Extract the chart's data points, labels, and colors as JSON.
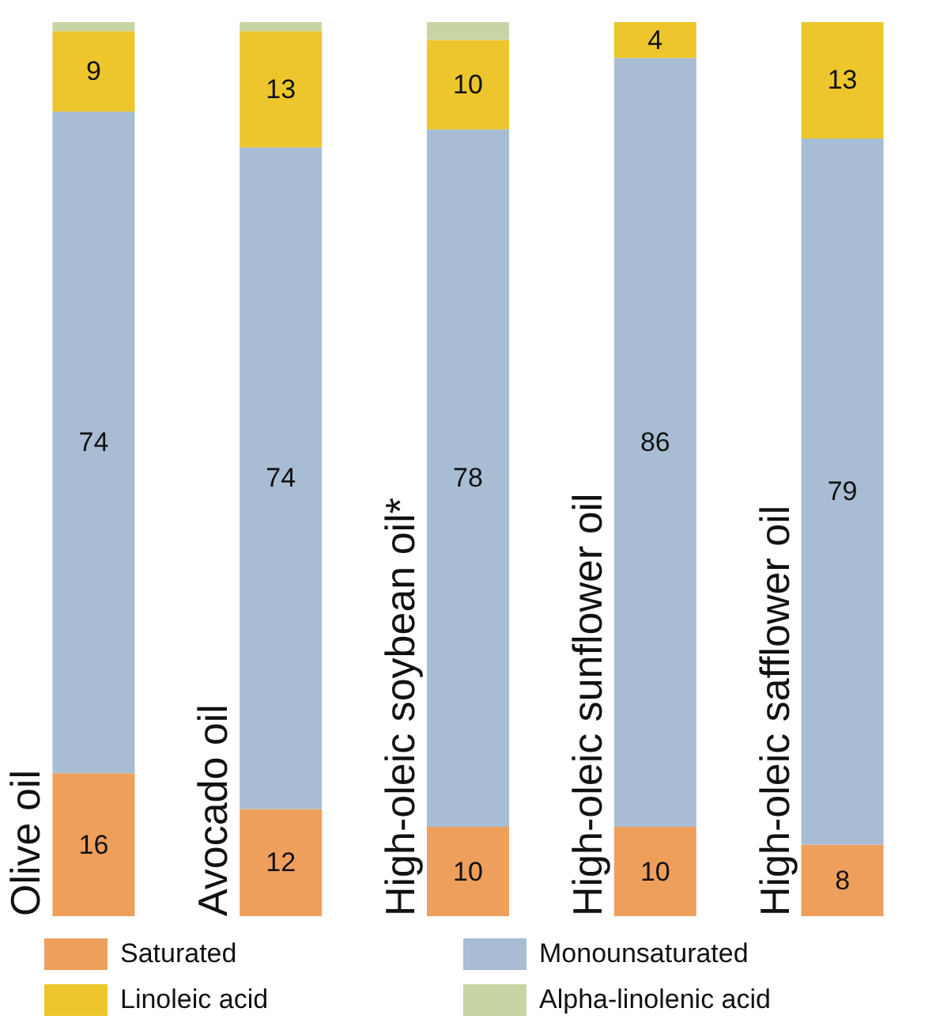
{
  "chart_data": {
    "type": "bar",
    "stacked": true,
    "legend": "bottom",
    "grid": false,
    "categories": [
      "Olive oil",
      "Avocado oil",
      "High-oleic soybean oil*",
      "High-oleic sunflower oil",
      "High-oleic safflower oil"
    ],
    "series": [
      {
        "name": "Saturated",
        "color": "#ee9f5c",
        "values": [
          16,
          12,
          10,
          10,
          8
        ],
        "value_labels": [
          "16",
          "12",
          "10",
          "10",
          "8"
        ]
      },
      {
        "name": "Monounsaturated",
        "color": "#a8bdd3",
        "values": [
          74,
          74,
          78,
          86,
          79
        ],
        "value_labels": [
          "74",
          "74",
          "78",
          "86",
          "79"
        ]
      },
      {
        "name": "Linoleic acid",
        "color": "#ecc62c",
        "values": [
          9,
          13,
          10,
          4,
          13
        ],
        "value_labels": [
          "9",
          "13",
          "10",
          "4",
          "13"
        ]
      },
      {
        "name": "Alpha-linolenic acid",
        "color": "#c9d4a4",
        "values": [
          1,
          1,
          2,
          0,
          0
        ],
        "value_labels": [
          null,
          null,
          null,
          null,
          null
        ]
      }
    ]
  }
}
